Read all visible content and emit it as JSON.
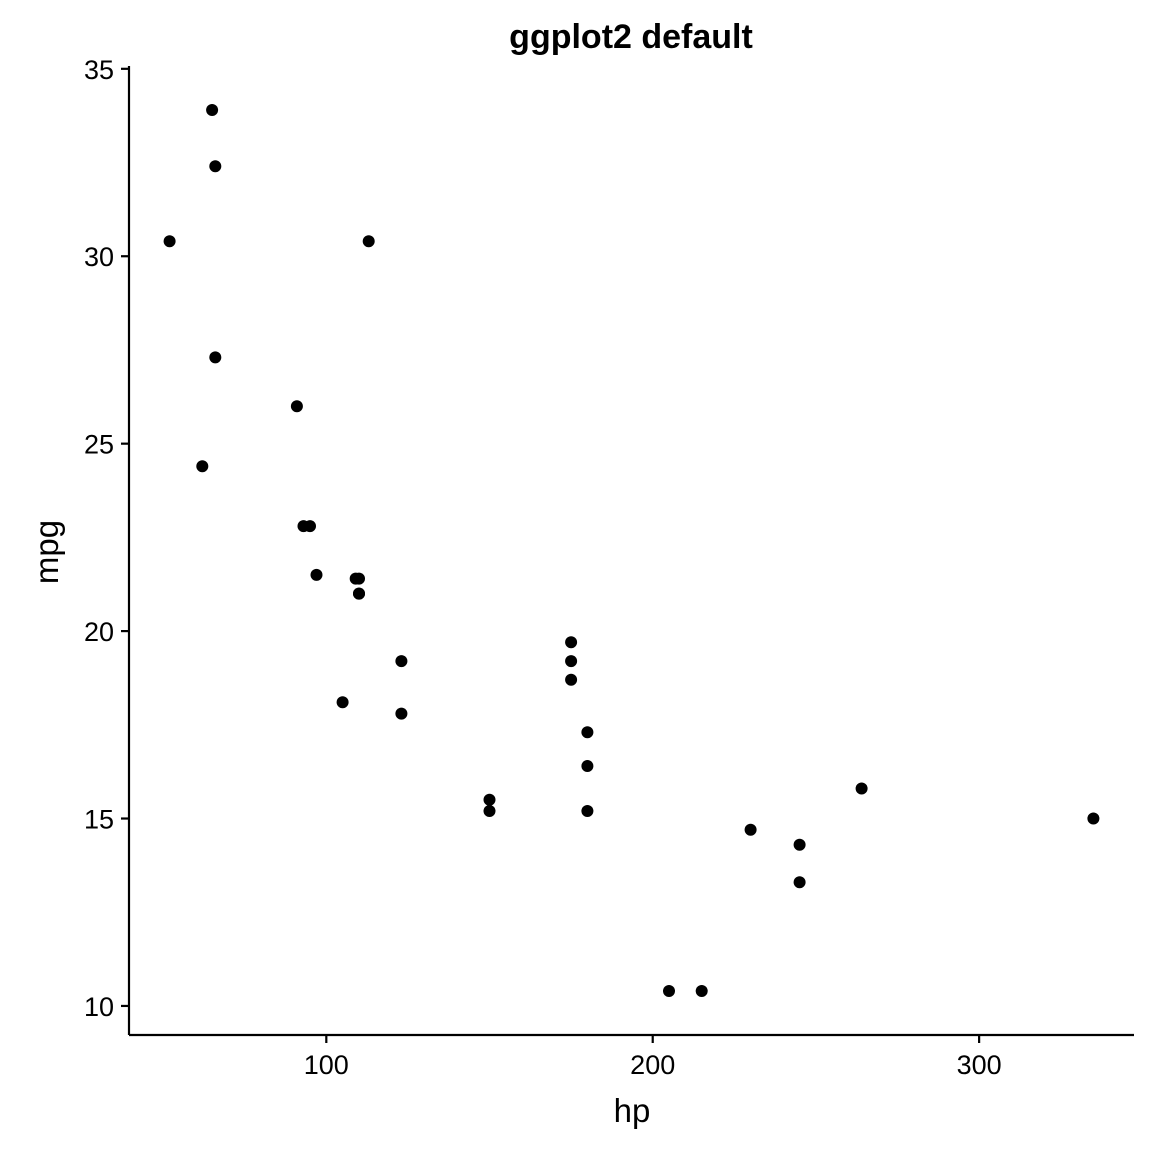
{
  "chart_data": {
    "type": "scatter",
    "title": "ggplot2 default",
    "xlabel": "hp",
    "ylabel": "mpg",
    "xlim": [
      39.55,
      347.45
    ],
    "ylim": [
      9.225,
      35.075
    ],
    "xticks": [
      100,
      200,
      300
    ],
    "yticks": [
      10,
      15,
      20,
      25,
      30,
      35
    ],
    "grid": false,
    "legend": "none",
    "point_color": "#000000",
    "series": [
      {
        "x": [
          110,
          110,
          93,
          110,
          175,
          105,
          245,
          62,
          95,
          123,
          123,
          180,
          180,
          180,
          205,
          215,
          230,
          66,
          52,
          65,
          97,
          150,
          150,
          245,
          175,
          66,
          91,
          113,
          264,
          175,
          335,
          109
        ],
        "y": [
          21.0,
          21.0,
          22.8,
          21.4,
          18.7,
          18.1,
          14.3,
          24.4,
          22.8,
          19.2,
          17.8,
          16.4,
          17.3,
          15.2,
          10.4,
          10.4,
          14.7,
          32.4,
          30.4,
          33.9,
          21.5,
          15.5,
          15.2,
          13.3,
          19.2,
          27.3,
          26.0,
          30.4,
          15.8,
          19.7,
          15.0,
          21.4
        ]
      }
    ]
  }
}
